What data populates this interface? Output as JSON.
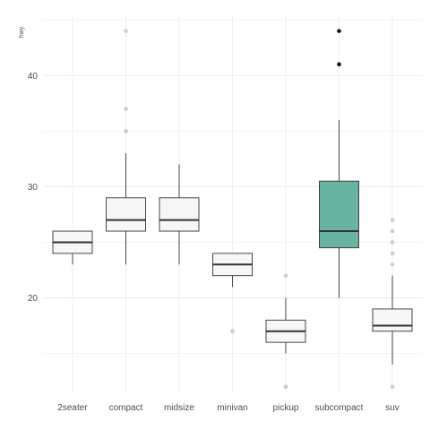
{
  "chart_data": {
    "type": "boxplot",
    "title": "",
    "xlabel": "",
    "ylabel": "hwy",
    "ylim": [
      11.5,
      45.5
    ],
    "yticks": [
      20,
      30,
      40
    ],
    "grid": true,
    "legend": "none",
    "categories": [
      "2seater",
      "compact",
      "midsize",
      "minivan",
      "pickup",
      "subcompact",
      "suv"
    ],
    "boxes": [
      {
        "category": "2seater",
        "whisker_low": 23,
        "q1": 24,
        "median": 25,
        "q3": 26,
        "whisker_high": 26,
        "outliers": []
      },
      {
        "category": "compact",
        "whisker_low": 23,
        "q1": 26,
        "median": 27,
        "q3": 29,
        "whisker_high": 33,
        "outliers": [
          35,
          37,
          35,
          44
        ]
      },
      {
        "category": "midsize",
        "whisker_low": 23,
        "q1": 26,
        "median": 27,
        "q3": 29,
        "whisker_high": 32,
        "outliers": []
      },
      {
        "category": "minivan",
        "whisker_low": 21,
        "q1": 22,
        "median": 23,
        "q3": 24,
        "whisker_high": 24,
        "outliers": [
          17
        ]
      },
      {
        "category": "pickup",
        "whisker_low": 15,
        "q1": 16,
        "median": 17,
        "q3": 18,
        "whisker_high": 20,
        "outliers": [
          12,
          12,
          12,
          22
        ]
      },
      {
        "category": "subcompact",
        "whisker_low": 20,
        "q1": 24.5,
        "median": 26,
        "q3": 30.5,
        "whisker_high": 36,
        "outliers": [
          44,
          41
        ]
      },
      {
        "category": "suv",
        "whisker_low": 14,
        "q1": 17,
        "median": 17.5,
        "q3": 19,
        "whisker_high": 22,
        "outliers": [
          12,
          12,
          24,
          25,
          23,
          26,
          27
        ]
      }
    ],
    "highlight": "subcompact",
    "colors": {
      "box_fill": "#f7f7f7",
      "highlight_fill": "#69b3a2",
      "outline": "#333333",
      "outlier": "#cccccc",
      "highlight_outlier": "#111111",
      "grid": "#ebebeb"
    }
  }
}
